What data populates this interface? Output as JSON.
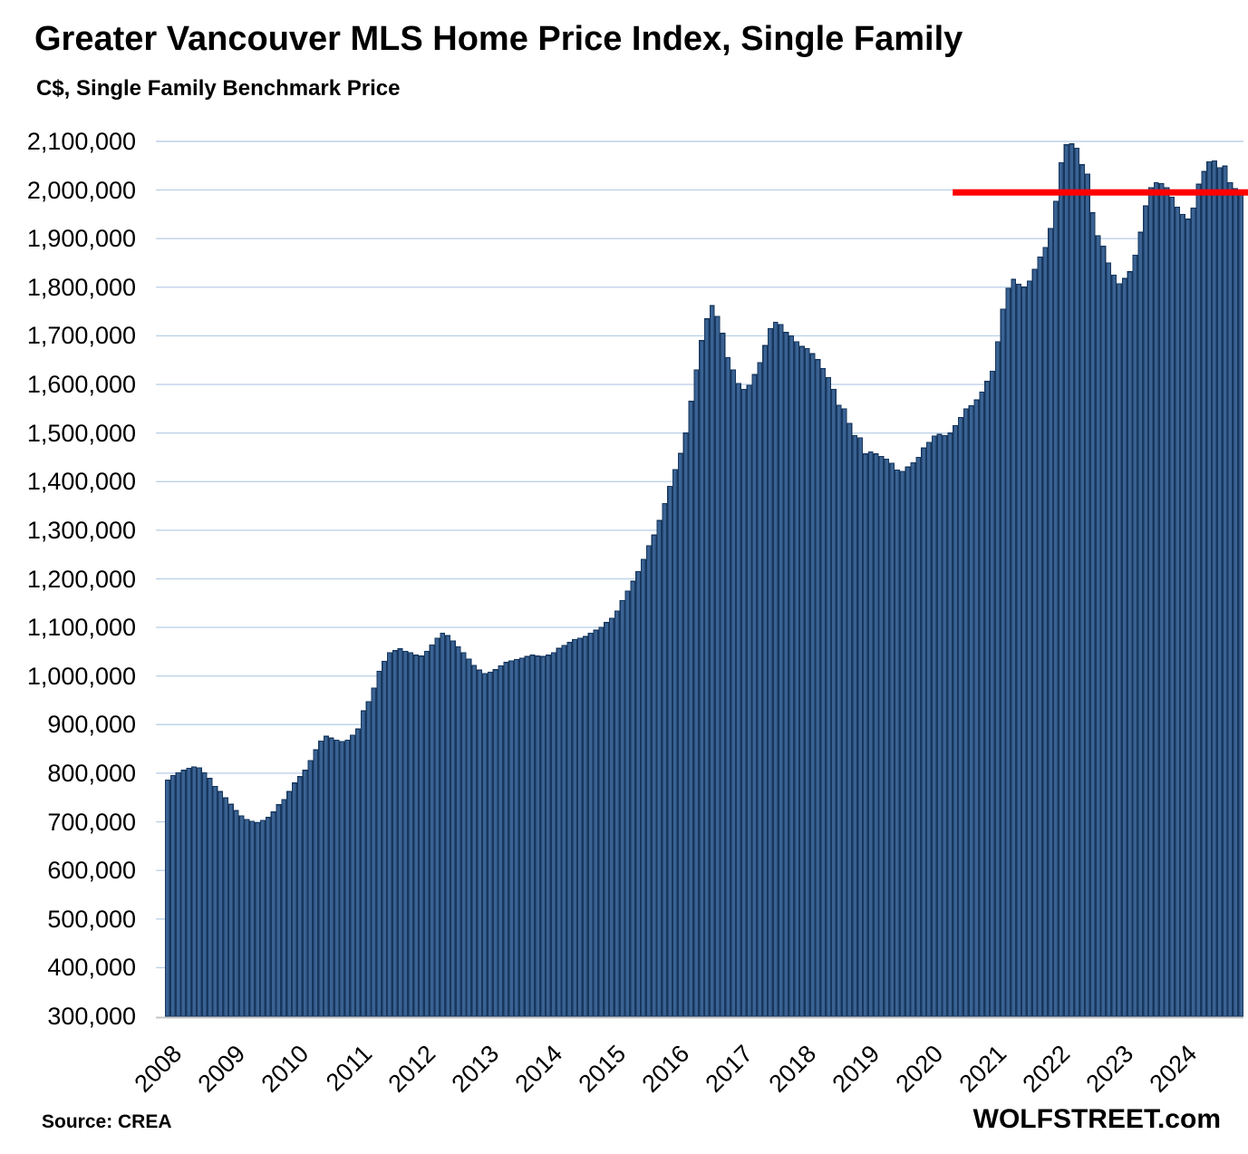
{
  "header": {
    "title": "Greater Vancouver MLS Home Price Index, Single Family",
    "subtitle": "C$, Single Family Benchmark Price"
  },
  "footer": {
    "source": "Source: CREA",
    "brand": "WOLFSTREET.com"
  },
  "colors": {
    "bar_fill": "#3A6292",
    "bar_border": "#17375E",
    "gridline": "#BDD2E8",
    "axis_line": "#C6C6C6",
    "reference_line": "#FF0000",
    "text": "#000000"
  },
  "chart_data": {
    "type": "bar",
    "title": "Greater Vancouver MLS Home Price Index, Single Family",
    "subtitle": "C$, Single Family Benchmark Price",
    "xlabel": "",
    "ylabel": "C$, Single Family Benchmark Price",
    "frequency": "monthly",
    "x_start": "2008-01",
    "x_end": "2024-12",
    "ylim": [
      300000,
      2100000
    ],
    "ytick_step": 100000,
    "grid": true,
    "legend_position": "none",
    "y_tick_labels": [
      "2,100,000",
      "2,000,000",
      "1,900,000",
      "1,800,000",
      "1,700,000",
      "1,600,000",
      "1,500,000",
      "1,400,000",
      "1,300,000",
      "1,200,000",
      "1,100,000",
      "1,000,000",
      "900,000",
      "800,000",
      "700,000",
      "600,000",
      "500,000",
      "400,000",
      "300,000"
    ],
    "y_tick_values": [
      2100000,
      2000000,
      1900000,
      1800000,
      1700000,
      1600000,
      1500000,
      1400000,
      1300000,
      1200000,
      1100000,
      1000000,
      900000,
      800000,
      700000,
      600000,
      500000,
      400000,
      300000
    ],
    "x_tick_labels": [
      "2008",
      "2009",
      "2010",
      "2011",
      "2012",
      "2013",
      "2014",
      "2015",
      "2016",
      "2017",
      "2018",
      "2019",
      "2020",
      "2021",
      "2022",
      "2023",
      "2024"
    ],
    "reference_line": {
      "value": 1995000,
      "start_month_index": 149,
      "extends_past_plot": true,
      "color": "#FF0000"
    },
    "series": [
      {
        "name": "Single Family Benchmark Price",
        "unit": "C$",
        "values": [
          786000,
          795000,
          801000,
          806000,
          810000,
          813000,
          811000,
          801000,
          789000,
          773000,
          762000,
          749000,
          736000,
          723000,
          712000,
          705000,
          701000,
          698000,
          703000,
          709000,
          720000,
          735000,
          746000,
          762000,
          780000,
          793000,
          806000,
          826000,
          848000,
          866000,
          876000,
          872000,
          868000,
          865000,
          868000,
          878000,
          891000,
          928000,
          947000,
          975000,
          1010000,
          1030000,
          1048000,
          1052000,
          1056000,
          1051000,
          1048000,
          1043000,
          1041000,
          1051000,
          1064000,
          1078000,
          1088000,
          1083000,
          1072000,
          1060000,
          1048000,
          1035000,
          1022000,
          1012000,
          1005000,
          1008000,
          1013000,
          1021000,
          1028000,
          1031000,
          1034000,
          1037000,
          1040000,
          1043000,
          1041000,
          1040000,
          1043000,
          1048000,
          1057000,
          1063000,
          1069000,
          1075000,
          1078000,
          1081000,
          1088000,
          1094000,
          1100000,
          1110000,
          1119000,
          1134000,
          1155000,
          1175000,
          1195000,
          1215000,
          1240000,
          1268000,
          1290000,
          1320000,
          1355000,
          1390000,
          1425000,
          1458000,
          1500000,
          1565000,
          1630000,
          1690000,
          1735000,
          1762000,
          1740000,
          1705000,
          1655000,
          1630000,
          1602000,
          1590000,
          1598000,
          1620000,
          1645000,
          1680000,
          1715000,
          1728000,
          1723000,
          1707000,
          1700000,
          1688000,
          1678000,
          1674000,
          1663000,
          1651000,
          1633000,
          1614000,
          1590000,
          1557000,
          1550000,
          1520000,
          1495000,
          1490000,
          1457000,
          1461000,
          1457000,
          1452000,
          1446000,
          1438000,
          1424000,
          1421000,
          1430000,
          1439000,
          1450000,
          1469000,
          1481000,
          1494000,
          1497000,
          1495000,
          1500000,
          1515000,
          1532000,
          1550000,
          1556000,
          1568000,
          1584000,
          1606000,
          1627000,
          1688000,
          1755000,
          1798000,
          1816000,
          1806000,
          1800000,
          1813000,
          1837000,
          1862000,
          1882000,
          1921000,
          1977000,
          2056000,
          2093000,
          2095000,
          2086000,
          2052000,
          2033000,
          1953000,
          1906000,
          1884000,
          1850000,
          1825000,
          1807000,
          1818000,
          1832000,
          1866000,
          1913000,
          1967000,
          2005000,
          2015000,
          2013000,
          2005000,
          1985000,
          1965000,
          1950000,
          1940000,
          1963000,
          2012000,
          2038000,
          2058000,
          2060000,
          2046000,
          2049000,
          2015000,
          2003000,
          1997000
        ]
      }
    ]
  }
}
